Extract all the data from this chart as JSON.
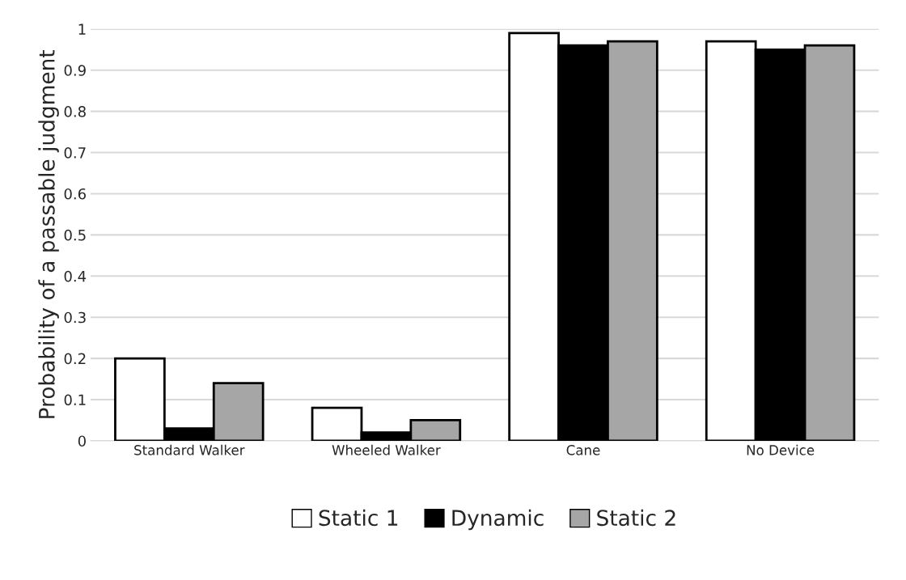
{
  "chart_data": {
    "type": "bar",
    "ylabel": "Probability of a passable judgment",
    "categories": [
      "Standard Walker",
      "Wheeled Walker",
      "Cane",
      "No Device"
    ],
    "series": [
      {
        "name": "Static 1",
        "color": "#ffffff",
        "values": [
          0.2,
          0.08,
          0.99,
          0.97
        ]
      },
      {
        "name": "Dynamic",
        "color": "#000000",
        "values": [
          0.03,
          0.02,
          0.96,
          0.95
        ]
      },
      {
        "name": "Static 2",
        "color": "#a6a6a6",
        "values": [
          0.14,
          0.05,
          0.97,
          0.96
        ]
      }
    ],
    "ylim": [
      0,
      1
    ],
    "yticks": [
      0,
      0.1,
      0.2,
      0.3,
      0.4,
      0.5,
      0.6,
      0.7,
      0.8,
      0.9,
      1
    ],
    "grid": "y",
    "legend": "bottom"
  }
}
